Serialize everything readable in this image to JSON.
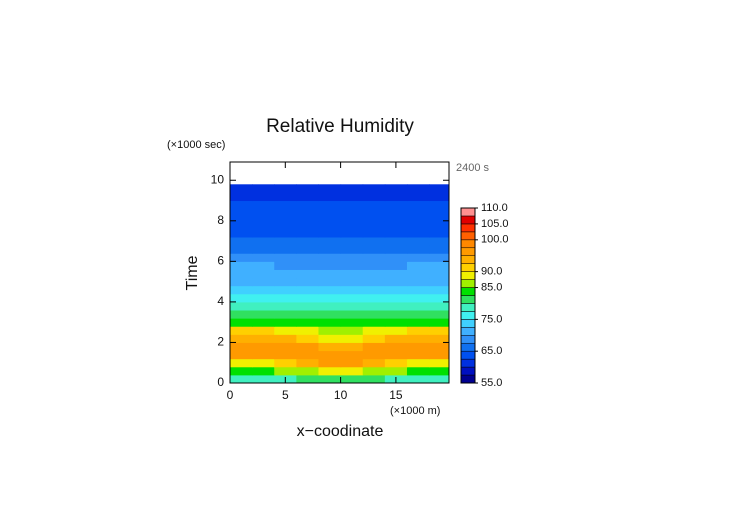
{
  "chart_data": {
    "type": "contour",
    "title": "Relative Humidity",
    "y_unit": "(×1000 sec)",
    "annotation": "2400 s",
    "ylabel": "Time",
    "xlabel": "x−coodinate",
    "x_unit": "(×1000 m)",
    "xlim": [
      0,
      19.8
    ],
    "ylim": [
      0,
      10.9
    ],
    "xticks": [
      0,
      5,
      10,
      15
    ],
    "yticks": [
      0,
      2,
      4,
      6,
      8,
      10
    ],
    "x": [
      0,
      2,
      4,
      6,
      8,
      10,
      12,
      14,
      16,
      18,
      19.8
    ],
    "y": [
      0,
      0.4,
      0.8,
      1.2,
      1.6,
      2.0,
      2.4,
      2.8,
      3.2,
      3.6,
      4.0,
      4.4,
      4.8,
      5.2,
      5.6,
      6.0,
      6.4,
      6.8,
      7.2,
      8,
      9,
      9.8
    ],
    "z": [
      [
        79,
        79,
        79.6,
        80.8,
        82,
        82,
        80.8,
        79.6,
        79,
        79
      ],
      [
        84,
        84,
        85,
        87,
        89,
        89,
        87,
        85,
        84,
        84
      ],
      [
        89,
        89,
        90.4,
        93.2,
        96,
        96,
        93.2,
        90.4,
        89,
        89
      ],
      [
        95,
        95,
        95,
        95,
        95,
        95,
        95,
        95,
        95,
        95
      ],
      [
        97,
        97,
        96.4,
        95.2,
        94,
        94,
        95.2,
        96.4,
        97,
        97
      ],
      [
        94,
        94,
        92.8,
        90.4,
        88,
        88,
        90.4,
        92.8,
        94,
        94
      ],
      [
        90,
        90,
        89.2,
        87.6,
        86,
        86,
        87.6,
        89.2,
        90,
        90
      ],
      [
        84,
        84,
        83.8,
        83.4,
        83,
        83,
        83.4,
        83.8,
        84,
        84
      ],
      [
        81,
        81,
        81.2,
        81.6,
        82,
        82,
        81.6,
        81.2,
        81,
        81
      ],
      [
        78,
        78,
        78.2,
        78.6,
        79,
        79,
        78.6,
        78.2,
        78,
        78
      ],
      [
        76,
        76,
        76.2,
        76.6,
        77,
        77,
        76.6,
        76.2,
        76,
        76
      ],
      [
        74,
        74,
        74,
        74,
        74,
        74,
        74,
        74,
        74,
        74
      ],
      [
        72,
        72,
        71.8,
        71.4,
        71,
        71,
        71.4,
        71.8,
        72,
        72
      ],
      [
        71,
        71,
        70.8,
        70.4,
        70,
        70,
        70.4,
        70.8,
        71,
        71
      ],
      [
        70,
        70,
        69.8,
        69.4,
        69,
        69,
        69.4,
        69.8,
        70,
        70
      ],
      [
        69,
        69,
        68.8,
        68.4,
        68,
        68,
        68.4,
        68.8,
        69,
        69
      ],
      [
        67,
        67,
        66.8,
        66.4,
        66,
        66,
        66.4,
        66.8,
        67,
        67
      ],
      [
        66,
        66,
        66,
        66,
        66,
        66,
        66,
        66,
        66,
        66
      ],
      [
        64,
        64,
        64,
        64,
        64,
        64,
        64,
        64,
        64,
        64
      ],
      [
        63,
        63,
        63,
        63,
        63,
        63,
        63,
        63,
        63,
        63
      ],
      [
        62,
        62,
        62,
        62,
        62,
        62,
        62,
        62,
        62,
        62
      ]
    ],
    "levels": [
      55,
      57.5,
      60,
      62.5,
      65,
      67.5,
      70,
      72.5,
      75,
      77.5,
      80,
      82.5,
      85,
      87.5,
      90,
      92.5,
      95,
      97.5,
      100,
      102.5,
      105,
      107.5,
      110
    ],
    "colors": [
      "#000090",
      "#0010c0",
      "#0030e0",
      "#0050f0",
      "#1070f0",
      "#3090f8",
      "#40b0ff",
      "#40d0ff",
      "#40f0f0",
      "#40f0c0",
      "#30e060",
      "#00e000",
      "#a0f000",
      "#f0f000",
      "#ffd000",
      "#ffb000",
      "#ff9a00",
      "#ff8800",
      "#ff6000",
      "#ff3000",
      "#e00000",
      "#ff9090"
    ],
    "colorbar_ticks": [
      {
        "value": 55,
        "label": "55.0"
      },
      {
        "value": 65,
        "label": "65.0"
      },
      {
        "value": 75,
        "label": "75.0"
      },
      {
        "value": 85,
        "label": "85.0"
      },
      {
        "value": 90,
        "label": "90.0"
      },
      {
        "value": 100,
        "label": "100.0"
      },
      {
        "value": 105,
        "label": "105.0"
      },
      {
        "value": 110,
        "label": "110.0"
      }
    ]
  }
}
